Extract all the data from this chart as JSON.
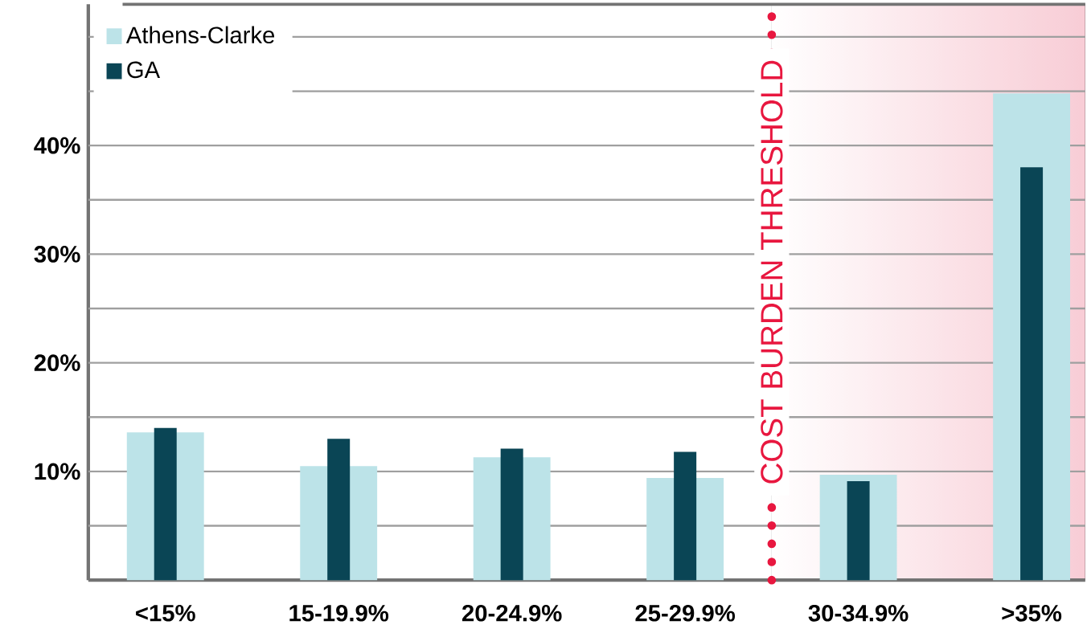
{
  "chart_data": {
    "type": "bar",
    "categories": [
      "<15%",
      "15-19.9%",
      "20-24.9%",
      "25-29.9%",
      "30-34.9%",
      ">35%"
    ],
    "series": [
      {
        "name": "Athens-Clarke",
        "color": "#bce3e8",
        "values": [
          13.6,
          10.5,
          11.3,
          9.4,
          9.7,
          44.8
        ]
      },
      {
        "name": "GA",
        "color": "#0a4555",
        "values": [
          14.0,
          13.0,
          12.1,
          11.8,
          9.1,
          38.0
        ]
      }
    ],
    "ylim": [
      0,
      53
    ],
    "yticks": [
      {
        "value": 5,
        "label": null
      },
      {
        "value": 10,
        "label": "10%"
      },
      {
        "value": 15,
        "label": null
      },
      {
        "value": 20,
        "label": "20%"
      },
      {
        "value": 25,
        "label": null
      },
      {
        "value": 30,
        "label": "30%"
      },
      {
        "value": 35,
        "label": null
      },
      {
        "value": 40,
        "label": "40%"
      },
      {
        "value": 45,
        "label": null
      },
      {
        "value": 50,
        "label": null
      }
    ],
    "grid": "y",
    "legend": "top left",
    "ref_lines": [
      {
        "axis": "x",
        "value": "30-34.9%",
        "label": "COST BURDEN THRESHOLD",
        "color": "#e8173f",
        "line_style": "dotted"
      }
    ],
    "bands": [
      {
        "axis": "x",
        "from": "30-34.9%",
        "to": ">35%",
        "color": "#f8cdd6"
      }
    ]
  }
}
